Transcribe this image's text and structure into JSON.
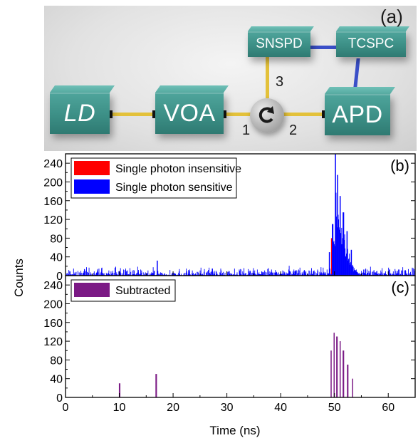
{
  "diagram": {
    "panel_label": "(a)",
    "components": {
      "ld": "LD",
      "voa": "VOA",
      "snspd": "SNSPD",
      "tcspc": "TCSPC",
      "apd": "APD"
    },
    "ports": {
      "p1": "1",
      "p2": "2",
      "p3": "3"
    },
    "colors": {
      "box": "#3f938a",
      "fiber_yellow": "#e3c13a",
      "cable_blue": "#3a4fc8",
      "connector": "#141414"
    },
    "icons": {
      "circulator": "circulator-arrow-icon"
    }
  },
  "chart_data": [
    {
      "type": "bar",
      "panel_label": "(b)",
      "xlim": [
        0,
        65
      ],
      "ylim": [
        0,
        260
      ],
      "yticks": [
        0,
        40,
        80,
        120,
        160,
        200,
        240
      ],
      "ylabel": "Counts",
      "grid": false,
      "legend_placement": "top-left",
      "series": [
        {
          "name": "Single photon insensitive",
          "color": "#ff0000",
          "peaks": [
            {
              "x": 49.4,
              "y": 80
            },
            {
              "x": 49.7,
              "y": 20
            }
          ],
          "background_level": 0
        },
        {
          "name": "Single photon sensitive",
          "color": "#0000ff",
          "peaks": [
            {
              "x": 17.0,
              "y": 32
            },
            {
              "x": 49.0,
              "y": 50
            },
            {
              "x": 49.6,
              "y": 110
            },
            {
              "x": 50.1,
              "y": 260
            },
            {
              "x": 50.5,
              "y": 215
            },
            {
              "x": 51.0,
              "y": 170
            },
            {
              "x": 51.6,
              "y": 135
            },
            {
              "x": 52.3,
              "y": 95
            },
            {
              "x": 53.1,
              "y": 55
            }
          ],
          "background_level": 10
        }
      ]
    },
    {
      "type": "bar",
      "panel_label": "(c)",
      "xlim": [
        0,
        65
      ],
      "ylim": [
        0,
        260
      ],
      "yticks": [
        0,
        40,
        80,
        120,
        160,
        200,
        240
      ],
      "xticks": [
        0,
        10,
        20,
        30,
        40,
        50,
        60
      ],
      "xlabel": "Time (ns)",
      "ylabel": "Counts",
      "grid": false,
      "legend_placement": "top-left",
      "series": [
        {
          "name": "Subtracted",
          "color": "#7b1a85",
          "peaks": [
            {
              "x": 10.0,
              "y": 30
            },
            {
              "x": 16.8,
              "y": 50
            },
            {
              "x": 49.3,
              "y": 100
            },
            {
              "x": 49.9,
              "y": 138
            },
            {
              "x": 50.4,
              "y": 130
            },
            {
              "x": 51.0,
              "y": 120
            },
            {
              "x": 51.6,
              "y": 100
            },
            {
              "x": 52.4,
              "y": 70
            },
            {
              "x": 53.3,
              "y": 40
            }
          ],
          "background_level": 10
        }
      ]
    }
  ]
}
